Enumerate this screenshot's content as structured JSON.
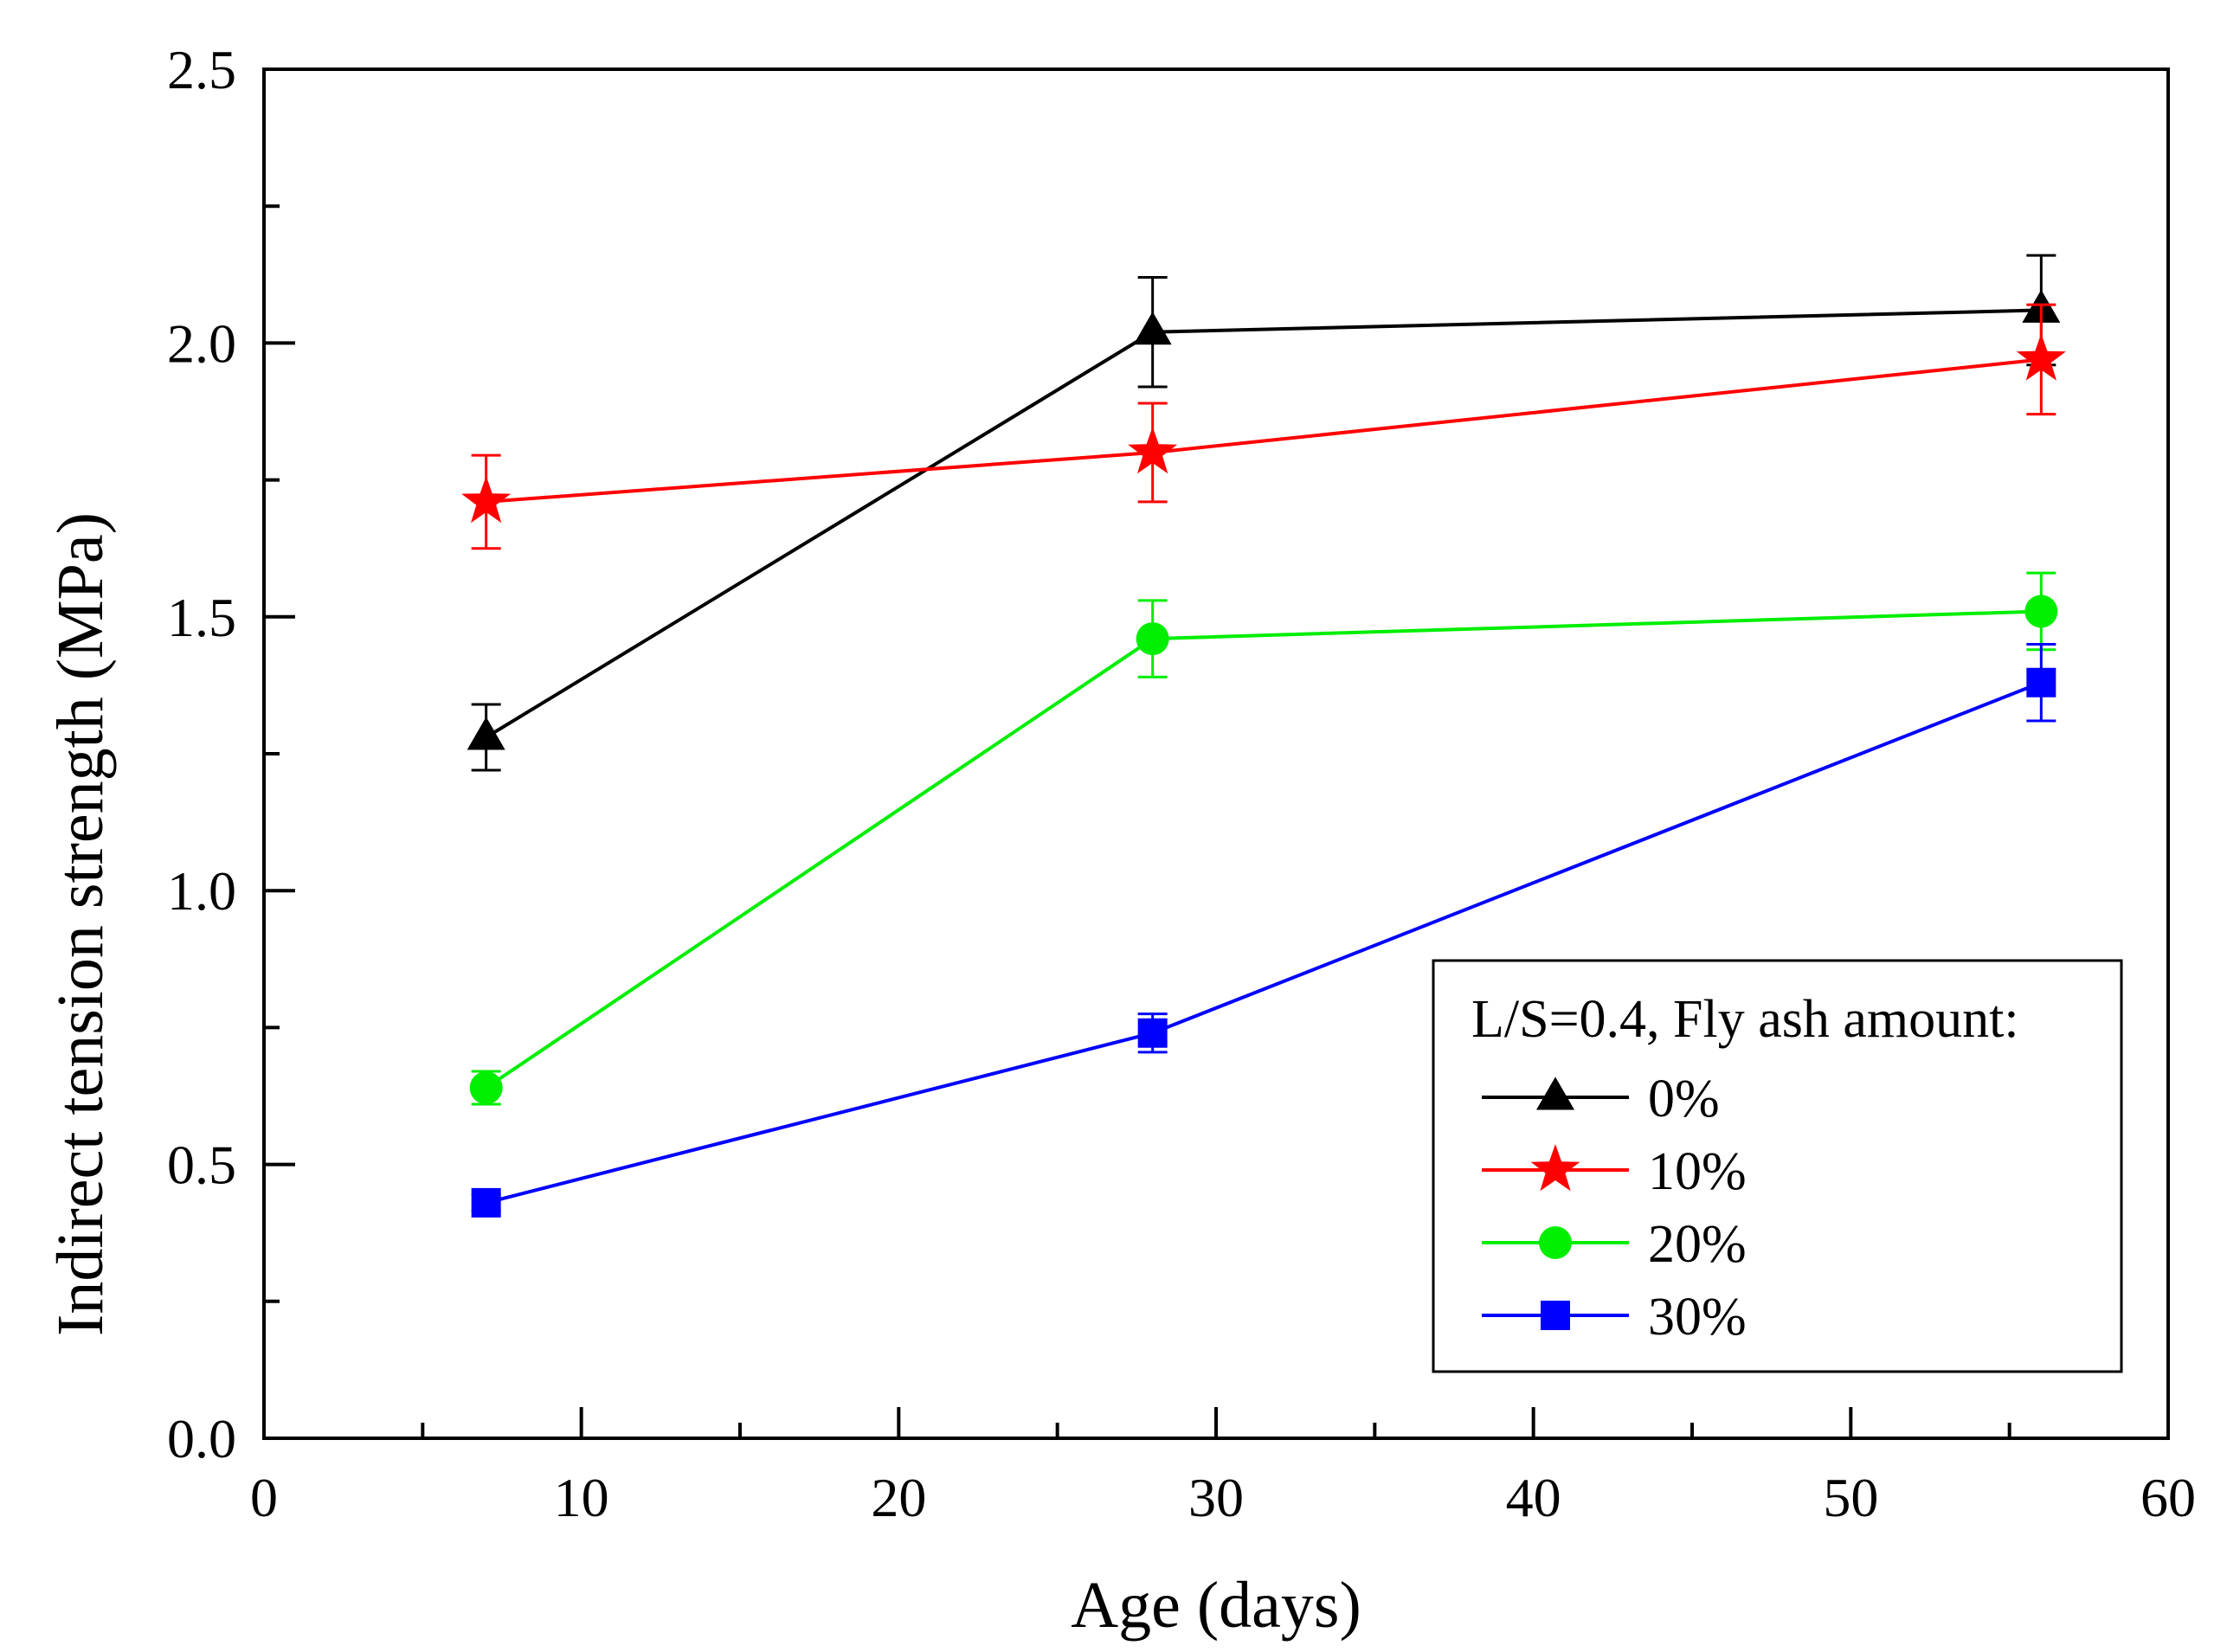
{
  "chart_data": {
    "type": "line",
    "title": "",
    "xlabel": "Age (days)",
    "ylabel": "Indirect tension strength (MPa)",
    "xlim": [
      0,
      60
    ],
    "ylim": [
      0.0,
      2.5
    ],
    "xticks": [
      0,
      10,
      20,
      30,
      40,
      50,
      60
    ],
    "xtick_labels": [
      "0",
      "10",
      "20",
      "30",
      "40",
      "50",
      "60"
    ],
    "yticks": [
      0.0,
      0.5,
      1.0,
      1.5,
      2.0,
      2.5
    ],
    "ytick_labels": [
      "0.0",
      "0.5",
      "1.0",
      "1.5",
      "2.0",
      "2.5"
    ],
    "grid": false,
    "legend": {
      "title": "L/S=0.4, Fly ash amount:",
      "placement": "bottom-right"
    },
    "x": [
      7,
      28,
      56
    ],
    "series": [
      {
        "name": "0%",
        "color": "#000000",
        "marker": "triangle",
        "values": [
          1.28,
          2.02,
          2.06
        ],
        "errors": [
          0.06,
          0.1,
          0.1
        ]
      },
      {
        "name": "10%",
        "color": "#ff0000",
        "marker": "star",
        "values": [
          1.71,
          1.8,
          1.97
        ],
        "errors": [
          0.085,
          0.09,
          0.1
        ]
      },
      {
        "name": "20%",
        "color": "#00ee00",
        "marker": "circle",
        "values": [
          0.64,
          1.46,
          1.51
        ],
        "errors": [
          0.03,
          0.07,
          0.07
        ]
      },
      {
        "name": "30%",
        "color": "#0000ff",
        "marker": "square",
        "values": [
          0.43,
          0.74,
          1.38
        ],
        "errors": [
          0.015,
          0.035,
          0.07
        ]
      }
    ]
  }
}
